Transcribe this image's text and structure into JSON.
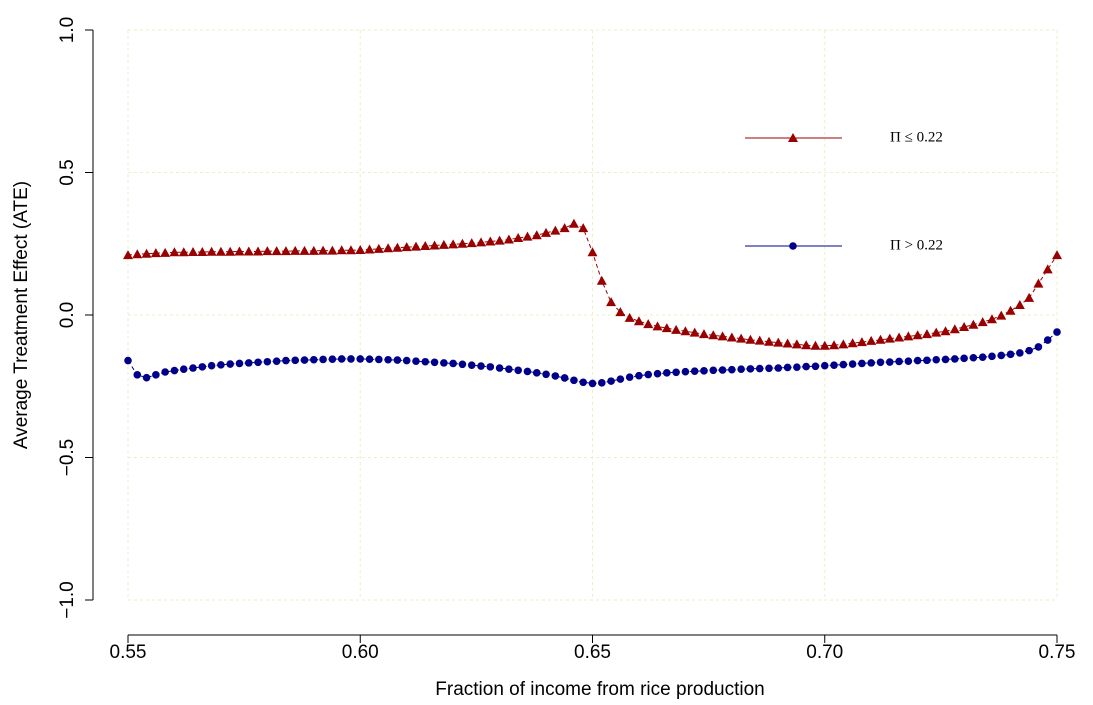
{
  "chart_data": {
    "type": "line",
    "x_label": "Fraction of income from rice production",
    "y_label": "Average Treatment Effect (ATE)",
    "xlim": [
      0.55,
      0.75
    ],
    "xticks": [
      0.55,
      {
        "value": 0.6,
        "label": "0.60"
      },
      0.65,
      {
        "value": 0.7,
        "label": "0.70"
      },
      0.75
    ],
    "ylim": [
      -1,
      1
    ],
    "yticks": [
      {
        "value": -1,
        "label": "−1.0"
      },
      {
        "value": -0.5,
        "label": "−0.5"
      },
      {
        "value": 0,
        "label": "0.0"
      },
      0.5,
      {
        "value": 1,
        "label": "1.0"
      }
    ],
    "grid": true,
    "x": [
      0.55,
      0.552,
      0.554,
      0.556,
      0.558,
      0.56,
      0.562,
      0.564,
      0.566,
      0.568,
      0.57,
      0.572,
      0.574,
      0.576,
      0.578,
      0.58,
      0.582,
      0.584,
      0.586,
      0.588,
      0.59,
      0.592,
      0.594,
      0.596,
      0.598,
      0.6,
      0.602,
      0.604,
      0.606,
      0.608,
      0.61,
      0.612,
      0.614,
      0.616,
      0.618,
      0.62,
      0.622,
      0.624,
      0.626,
      0.628,
      0.63,
      0.632,
      0.634,
      0.636,
      0.638,
      0.64,
      0.642,
      0.644,
      0.646,
      0.648,
      0.65,
      0.652,
      0.654,
      0.656,
      0.658,
      0.66,
      0.662,
      0.664,
      0.666,
      0.668,
      0.67,
      0.672,
      0.674,
      0.676,
      0.678,
      0.68,
      0.682,
      0.684,
      0.686,
      0.688,
      0.69,
      0.692,
      0.694,
      0.696,
      0.698,
      0.7,
      0.702,
      0.704,
      0.706,
      0.708,
      0.71,
      0.712,
      0.714,
      0.716,
      0.718,
      0.72,
      0.722,
      0.724,
      0.726,
      0.728,
      0.73,
      0.732,
      0.734,
      0.736,
      0.738,
      0.74,
      0.742,
      0.744,
      0.746,
      0.748,
      0.75
    ],
    "series": [
      {
        "name": "Π ≤ 0.22",
        "color": "#990000",
        "marker": "triangle",
        "values": [
          0.21,
          0.213,
          0.215,
          0.217,
          0.218,
          0.22,
          0.22,
          0.221,
          0.221,
          0.222,
          0.222,
          0.222,
          0.223,
          0.223,
          0.223,
          0.224,
          0.224,
          0.224,
          0.225,
          0.225,
          0.225,
          0.226,
          0.226,
          0.227,
          0.227,
          0.228,
          0.23,
          0.232,
          0.234,
          0.236,
          0.238,
          0.24,
          0.242,
          0.244,
          0.246,
          0.248,
          0.25,
          0.252,
          0.255,
          0.258,
          0.261,
          0.265,
          0.27,
          0.275,
          0.28,
          0.288,
          0.296,
          0.305,
          0.32,
          0.305,
          0.22,
          0.12,
          0.045,
          0.01,
          -0.01,
          -0.022,
          -0.032,
          -0.04,
          -0.046,
          -0.052,
          -0.057,
          -0.062,
          -0.067,
          -0.071,
          -0.075,
          -0.079,
          -0.083,
          -0.087,
          -0.09,
          -0.094,
          -0.097,
          -0.1,
          -0.103,
          -0.106,
          -0.108,
          -0.108,
          -0.106,
          -0.103,
          -0.099,
          -0.095,
          -0.091,
          -0.087,
          -0.083,
          -0.079,
          -0.075,
          -0.071,
          -0.067,
          -0.062,
          -0.057,
          -0.05,
          -0.042,
          -0.034,
          -0.025,
          -0.015,
          -0.002,
          0.015,
          0.035,
          0.06,
          0.11,
          0.16,
          0.21
        ]
      },
      {
        "name": "Π > 0.22",
        "color": "#00008b",
        "marker": "circle",
        "values": [
          -0.16,
          -0.21,
          -0.22,
          -0.21,
          -0.2,
          -0.195,
          -0.19,
          -0.186,
          -0.182,
          -0.178,
          -0.175,
          -0.172,
          -0.17,
          -0.168,
          -0.166,
          -0.164,
          -0.162,
          -0.16,
          -0.159,
          -0.158,
          -0.157,
          -0.156,
          -0.155,
          -0.154,
          -0.154,
          -0.154,
          -0.155,
          -0.156,
          -0.157,
          -0.158,
          -0.16,
          -0.162,
          -0.164,
          -0.166,
          -0.168,
          -0.17,
          -0.173,
          -0.176,
          -0.179,
          -0.182,
          -0.186,
          -0.19,
          -0.194,
          -0.198,
          -0.203,
          -0.208,
          -0.214,
          -0.221,
          -0.229,
          -0.236,
          -0.24,
          -0.238,
          -0.232,
          -0.225,
          -0.218,
          -0.213,
          -0.209,
          -0.206,
          -0.203,
          -0.201,
          -0.199,
          -0.197,
          -0.196,
          -0.194,
          -0.193,
          -0.192,
          -0.19,
          -0.189,
          -0.188,
          -0.187,
          -0.186,
          -0.184,
          -0.183,
          -0.181,
          -0.18,
          -0.178,
          -0.176,
          -0.174,
          -0.172,
          -0.17,
          -0.168,
          -0.166,
          -0.165,
          -0.163,
          -0.162,
          -0.16,
          -0.159,
          -0.157,
          -0.156,
          -0.154,
          -0.152,
          -0.15,
          -0.148,
          -0.145,
          -0.142,
          -0.138,
          -0.133,
          -0.125,
          -0.112,
          -0.088,
          -0.06
        ]
      }
    ]
  }
}
